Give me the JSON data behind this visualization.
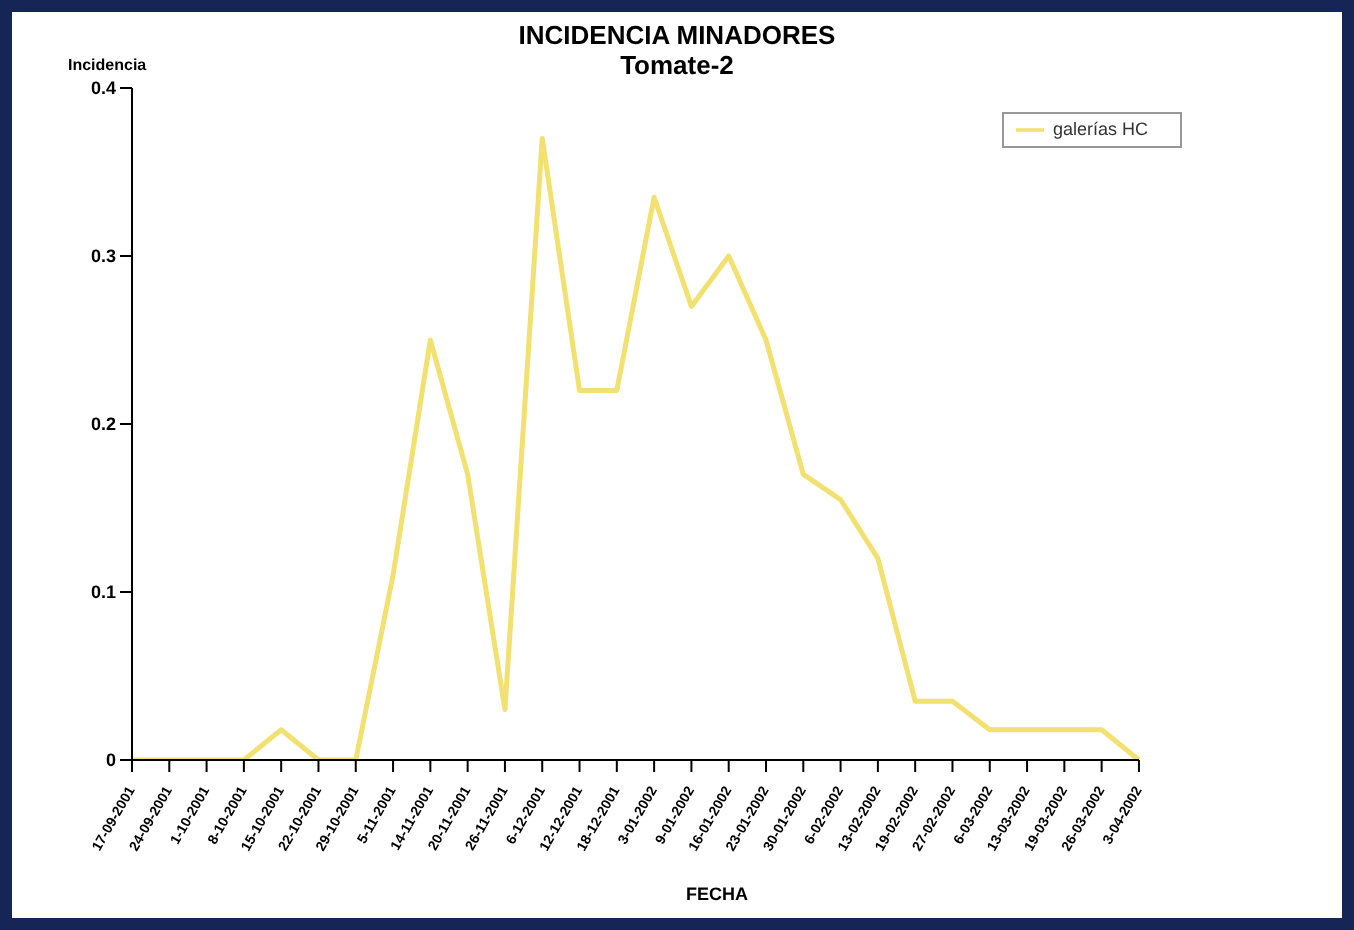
{
  "chart_data": {
    "type": "line",
    "title": "INCIDENCIA MINADORES",
    "subtitle": "Tomate-2",
    "xlabel": "FECHA",
    "ylabel": "Incidencia",
    "categories": [
      "17-09-2001",
      "24-09-2001",
      "1-10-2001",
      "8-10-2001",
      "15-10-2001",
      "22-10-2001",
      "29-10-2001",
      "5-11-2001",
      "14-11-2001",
      "20-11-2001",
      "26-11-2001",
      "6-12-2001",
      "12-12-2001",
      "18-12-2001",
      "3-01-2002",
      "9-01-2002",
      "16-01-2002",
      "23-01-2002",
      "30-01-2002",
      "6-02-2002",
      "13-02-2002",
      "19-02-2002",
      "27-02-2002",
      "6-03-2002",
      "13-03-2002",
      "19-03-2002",
      "26-03-2002",
      "3-04-2002"
    ],
    "series": [
      {
        "name": "galerías HC",
        "color": "#f2e070",
        "values": [
          0,
          0,
          0,
          0,
          0.018,
          0,
          0,
          0.11,
          0.25,
          0.17,
          0.03,
          0.37,
          0.22,
          0.22,
          0.335,
          0.27,
          0.3,
          0.25,
          0.17,
          0.155,
          0.12,
          0.035,
          0.035,
          0.018,
          0.018,
          0.018,
          0.018,
          0
        ]
      }
    ],
    "ylim": [
      0,
      0.4
    ],
    "yticks": [
      0,
      0.1,
      0.2,
      0.3,
      0.4
    ],
    "grid": false,
    "legend": "top right",
    "marker": "none",
    "line_style": "solid"
  }
}
